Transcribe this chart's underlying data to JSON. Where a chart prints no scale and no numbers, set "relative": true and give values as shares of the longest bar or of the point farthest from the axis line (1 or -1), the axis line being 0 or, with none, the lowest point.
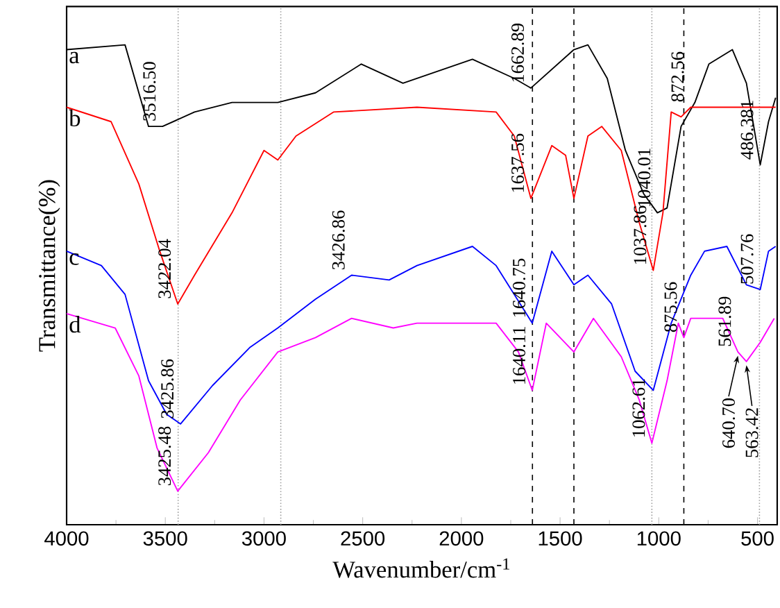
{
  "chart_data": {
    "type": "line",
    "relative": true,
    "xlabel": "Wavenumber/cm$^{-1}$",
    "ylabel": "Transmittance(%)",
    "xlim": [
      4000,
      400
    ],
    "xticks": [
      4000,
      3500,
      3000,
      2500,
      2000,
      1500,
      1000,
      500
    ],
    "series": [
      {
        "name": "a",
        "color": "#000000",
        "x": [
          4000,
          3704,
          3585,
          3514,
          3352,
          3162,
          2930,
          2739,
          2507,
          2296,
          1944,
          1732,
          1648,
          1430,
          1359,
          1261,
          1169,
          1077,
          1007,
          958,
          887,
          817,
          746,
          627,
          556,
          486,
          444,
          408
        ],
        "values": [
          0.99,
          1.0,
          0.83,
          0.83,
          0.86,
          0.88,
          0.88,
          0.9,
          0.96,
          0.92,
          0.97,
          0.93,
          0.91,
          0.99,
          1.0,
          0.93,
          0.78,
          0.69,
          0.65,
          0.66,
          0.83,
          0.88,
          0.96,
          0.99,
          0.92,
          0.75,
          0.84,
          0.89
        ]
      },
      {
        "name": "b",
        "color": "#ff0000",
        "x": [
          4000,
          3775,
          3634,
          3528,
          3437,
          3352,
          3162,
          3000,
          2930,
          2838,
          2648,
          2225,
          1824,
          1732,
          1648,
          1542,
          1472,
          1430,
          1359,
          1289,
          1190,
          1099,
          1028,
          979,
          937,
          887,
          838,
          408
        ],
        "values": [
          0.87,
          0.84,
          0.71,
          0.57,
          0.46,
          0.52,
          0.65,
          0.78,
          0.76,
          0.81,
          0.86,
          0.87,
          0.86,
          0.81,
          0.68,
          0.79,
          0.77,
          0.68,
          0.81,
          0.83,
          0.78,
          0.63,
          0.53,
          0.65,
          0.86,
          0.85,
          0.87,
          0.87
        ]
      },
      {
        "name": "c",
        "color": "#0000ff",
        "x": [
          4000,
          3824,
          3704,
          3585,
          3493,
          3423,
          3261,
          3070,
          2930,
          2739,
          2556,
          2366,
          2225,
          1944,
          1824,
          1641,
          1542,
          1430,
          1359,
          1239,
          1120,
          1028,
          937,
          838,
          768,
          655,
          556,
          486,
          444,
          408
        ],
        "values": [
          0.57,
          0.54,
          0.48,
          0.3,
          0.23,
          0.21,
          0.29,
          0.37,
          0.41,
          0.47,
          0.52,
          0.51,
          0.54,
          0.58,
          0.54,
          0.42,
          0.57,
          0.5,
          0.52,
          0.46,
          0.32,
          0.28,
          0.42,
          0.52,
          0.57,
          0.58,
          0.5,
          0.49,
          0.57,
          0.58
        ]
      },
      {
        "name": "d",
        "color": "#ff00ff",
        "x": [
          4000,
          3754,
          3634,
          3542,
          3437,
          3282,
          3120,
          2930,
          2739,
          2556,
          2345,
          2225,
          1824,
          1711,
          1641,
          1570,
          1430,
          1331,
          1190,
          1099,
          1035,
          958,
          901,
          873,
          838,
          676,
          599,
          556,
          486,
          415
        ],
        "values": [
          0.44,
          0.41,
          0.31,
          0.16,
          0.07,
          0.15,
          0.26,
          0.36,
          0.39,
          0.43,
          0.41,
          0.42,
          0.42,
          0.36,
          0.28,
          0.42,
          0.36,
          0.43,
          0.35,
          0.26,
          0.17,
          0.3,
          0.42,
          0.39,
          0.43,
          0.43,
          0.36,
          0.34,
          0.38,
          0.43
        ]
      }
    ],
    "ref_lines": [
      {
        "axis": "x",
        "value": 1640,
        "color": "#000000",
        "line_style": "dashed"
      },
      {
        "axis": "x",
        "value": 1430,
        "color": "#000000",
        "line_style": "dashed"
      },
      {
        "axis": "x",
        "value": 873,
        "color": "#000000",
        "line_style": "dashed"
      },
      {
        "axis": "x",
        "value": 3435,
        "color": "#a0a0a0",
        "line_style": "dotted"
      },
      {
        "axis": "x",
        "value": 2915,
        "color": "#a0a0a0",
        "line_style": "dotted"
      },
      {
        "axis": "x",
        "value": 1035,
        "color": "#a0a0a0",
        "line_style": "dotted"
      },
      {
        "axis": "x",
        "value": 490,
        "color": "#a0a0a0",
        "line_style": "dotted"
      }
    ],
    "annotations": [
      {
        "text": "3516.50",
        "x": 3514,
        "y": 0.83
      },
      {
        "text": "1662.89",
        "x": 1648,
        "y": 0.91
      },
      {
        "text": "1637.56",
        "x": 1648,
        "y": 0.68
      },
      {
        "text": "1040.01",
        "x": 1007,
        "y": 0.65
      },
      {
        "text": "1037.86",
        "x": 1028,
        "y": 0.53
      },
      {
        "text": "872.56",
        "x": 838,
        "y": 0.87
      },
      {
        "text": "486.381",
        "x": 486,
        "y": 0.75
      },
      {
        "text": "507.76",
        "x": 486,
        "y": 0.49
      },
      {
        "text": "3422.04",
        "x": 3437,
        "y": 0.46
      },
      {
        "text": "3426.86",
        "x": 2556,
        "y": 0.52
      },
      {
        "text": "1640.75",
        "x": 1641,
        "y": 0.42
      },
      {
        "text": "3425.86",
        "x": 3423,
        "y": 0.21
      },
      {
        "text": "3425.48",
        "x": 3437,
        "y": 0.07
      },
      {
        "text": "1640.11",
        "x": 1641,
        "y": 0.28
      },
      {
        "text": "1062.61",
        "x": 1035,
        "y": 0.17
      },
      {
        "text": "875.56",
        "x": 873,
        "y": 0.39
      },
      {
        "text": "561.89",
        "x": 599,
        "y": 0.36
      },
      {
        "text": "640.70",
        "x": 599,
        "y": 0.36
      },
      {
        "text": "563.42",
        "x": 556,
        "y": 0.34
      }
    ]
  }
}
